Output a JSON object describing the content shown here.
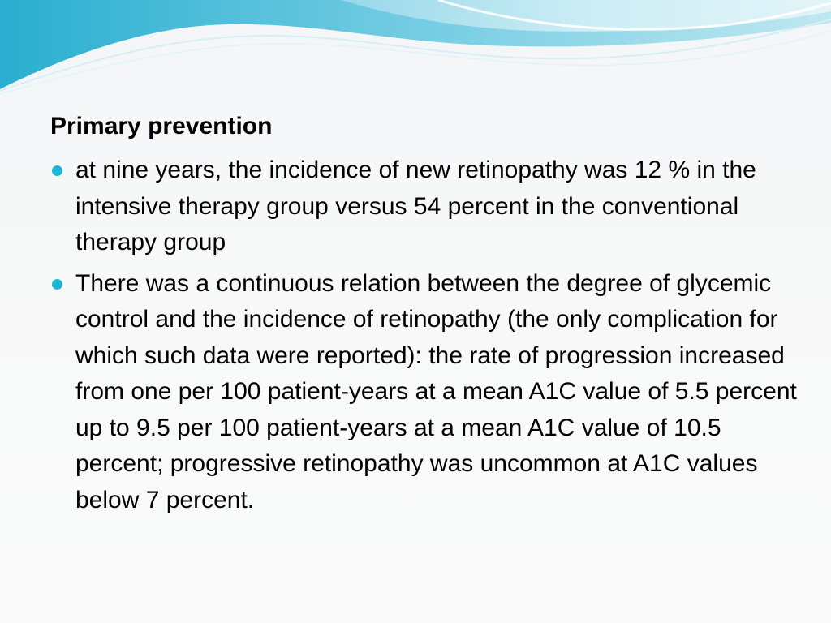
{
  "slide": {
    "heading": "Primary prevention",
    "bullets": [
      {
        "icon": "bullet-dot",
        "text": "at nine years, the incidence of new retinopathy was 12 % in the intensive therapy group versus 54 percent in the conventional therapy group"
      },
      {
        "icon": "bullet-dot",
        "text": "There was a continuous relation between the degree of glycemic control and the incidence of retinopathy (the only complication for which such data were reported): the rate of progression increased from one per 100 patient-years at a mean A1C value of 5.5 percent up to 9.5 per 100 patient-years at a mean A1C value of 10.5 percent; progressive retinopathy was uncommon at A1C values below 7 percent."
      }
    ]
  },
  "colors": {
    "bullet": "#1cb5d6",
    "wave_dark": "#3fb7d4",
    "wave_light": "#bfe8f1",
    "text": "#000000"
  }
}
